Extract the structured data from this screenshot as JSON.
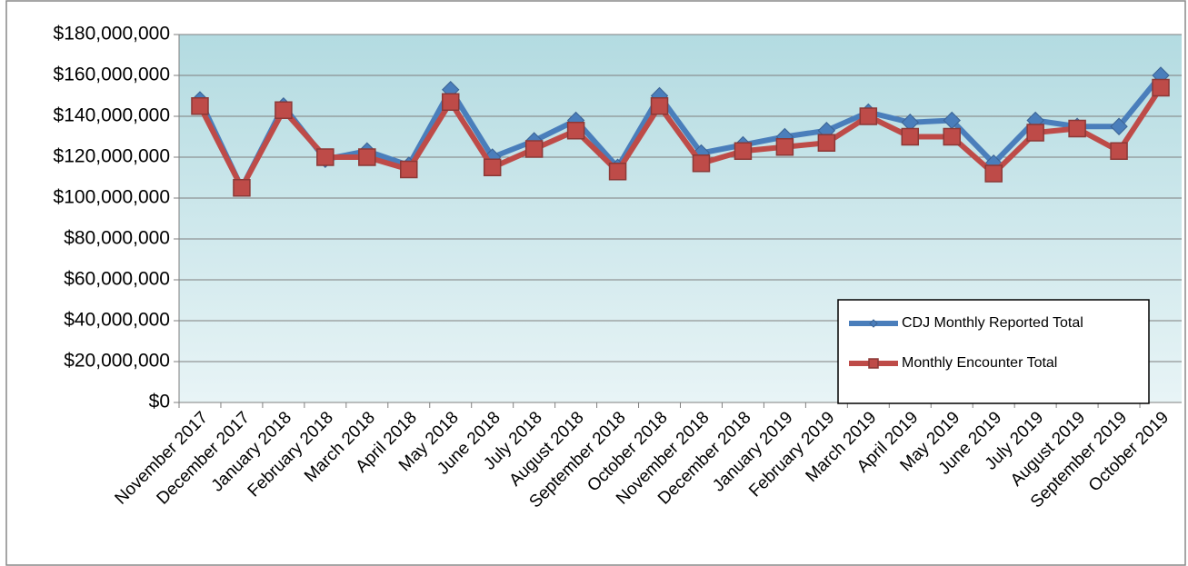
{
  "chart_data": {
    "type": "line",
    "categories": [
      "November 2017",
      "December 2017",
      "January 2018",
      "February 2018",
      "March 2018",
      "April 2018",
      "May 2018",
      "June 2018",
      "July 2018",
      "August 2018",
      "September 2018",
      "October 2018",
      "November 2018",
      "December 2018",
      "January 2019",
      "February 2019",
      "March 2019",
      "April 2019",
      "May 2019",
      "June 2019",
      "July 2019",
      "August 2019",
      "September 2019",
      "October 2019"
    ],
    "series": [
      {
        "name": "CDJ Monthly Reported Total",
        "color": "#4a7ebb",
        "marker": "diamond",
        "values": [
          148000000,
          105000000,
          145000000,
          119000000,
          123000000,
          116000000,
          153000000,
          120000000,
          128000000,
          138000000,
          115000000,
          150000000,
          122000000,
          126000000,
          130000000,
          133000000,
          142000000,
          137000000,
          138000000,
          117000000,
          138000000,
          135000000,
          135000000,
          160000000
        ]
      },
      {
        "name": "Monthly Encounter Total",
        "color": "#be4b48",
        "marker": "square",
        "values": [
          145000000,
          105000000,
          143000000,
          120000000,
          120000000,
          114000000,
          147000000,
          115000000,
          124000000,
          133000000,
          113000000,
          145000000,
          117000000,
          123000000,
          125000000,
          127000000,
          140000000,
          130000000,
          130000000,
          112000000,
          132000000,
          134000000,
          123000000,
          154000000
        ]
      }
    ],
    "ylim": [
      0,
      180000000
    ],
    "yticks": [
      {
        "value": 0,
        "label": "$0"
      },
      {
        "value": 20000000,
        "label": "$20,000,000"
      },
      {
        "value": 40000000,
        "label": "$40,000,000"
      },
      {
        "value": 60000000,
        "label": "$60,000,000"
      },
      {
        "value": 80000000,
        "label": "$80,000,000"
      },
      {
        "value": 100000000,
        "label": "$100,000,000"
      },
      {
        "value": 120000000,
        "label": "$120,000,000"
      },
      {
        "value": 140000000,
        "label": "$140,000,000"
      },
      {
        "value": 160000000,
        "label": "$160,000,000"
      },
      {
        "value": 180000000,
        "label": "$180,000,000"
      }
    ],
    "grid": true,
    "legend": "lower-right"
  }
}
